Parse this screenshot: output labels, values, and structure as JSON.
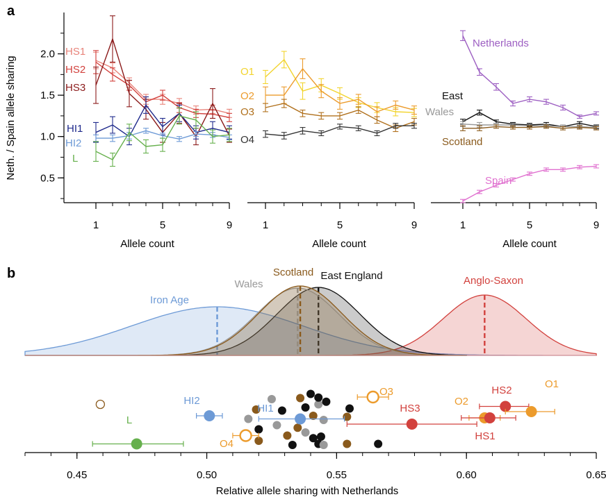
{
  "panel_labels": {
    "a": "a",
    "b": "b"
  },
  "chart_data": [
    {
      "id": "a1",
      "type": "line",
      "xlabel": "Allele count",
      "ylabel": "Neth. / Spain allele sharing",
      "xlim": [
        1,
        9
      ],
      "ylim": [
        0.2,
        2.5
      ],
      "xticks": [
        1,
        5,
        9
      ],
      "yticks": [
        0.5,
        1.0,
        1.5,
        2.0
      ],
      "x": [
        1,
        2,
        3,
        4,
        5,
        6,
        7,
        8,
        9
      ],
      "series": [
        {
          "name": "HS1",
          "color": "#e8837a",
          "values": [
            1.92,
            1.83,
            1.65,
            1.45,
            1.45,
            1.4,
            1.32,
            1.33,
            1.28
          ],
          "err": [
            0.1,
            0.06,
            0.06,
            0.06,
            0.06,
            0.06,
            0.05,
            0.05,
            0.05
          ]
        },
        {
          "name": "HS2",
          "color": "#d2413d",
          "values": [
            1.9,
            1.75,
            1.62,
            1.42,
            1.5,
            1.35,
            1.28,
            1.27,
            1.23
          ],
          "err": [
            0.14,
            0.08,
            0.06,
            0.06,
            0.06,
            0.06,
            0.05,
            0.05,
            0.05
          ]
        },
        {
          "name": "HS3",
          "color": "#8b1a1a",
          "values": [
            1.62,
            2.18,
            1.52,
            1.33,
            1.05,
            1.28,
            1.0,
            1.4,
            1.01
          ],
          "err": [
            0.22,
            0.28,
            0.16,
            0.12,
            0.12,
            0.12,
            0.1,
            0.18,
            0.08
          ]
        },
        {
          "name": "HI1",
          "color": "#1f2a8c",
          "values": [
            1.05,
            1.14,
            1.0,
            1.38,
            1.12,
            1.28,
            1.05,
            1.1,
            1.05
          ],
          "err": [
            0.12,
            0.1,
            0.1,
            0.1,
            0.1,
            0.1,
            0.08,
            0.08,
            0.08
          ]
        },
        {
          "name": "HI2",
          "color": "#6d9ad6",
          "values": [
            0.98,
            0.98,
            1.01,
            1.07,
            1.01,
            0.97,
            1.03,
            1.02,
            0.99
          ],
          "err": [
            0.04,
            0.04,
            0.04,
            0.03,
            0.03,
            0.03,
            0.03,
            0.03,
            0.03
          ]
        },
        {
          "name": "L",
          "color": "#66b04d",
          "values": [
            0.82,
            0.72,
            1.05,
            0.88,
            0.9,
            1.25,
            1.2,
            1.0,
            1.02
          ],
          "err": [
            0.12,
            0.08,
            0.1,
            0.08,
            0.08,
            0.1,
            0.1,
            0.08,
            0.08
          ]
        }
      ]
    },
    {
      "id": "a2",
      "type": "line",
      "xlabel": "Allele count",
      "xlim": [
        1,
        9
      ],
      "ylim": [
        0.2,
        2.5
      ],
      "xticks": [
        1,
        5,
        9
      ],
      "x": [
        1,
        2,
        3,
        4,
        5,
        6,
        7,
        8,
        9
      ],
      "series": [
        {
          "name": "O1",
          "color": "#f2d42e",
          "values": [
            1.72,
            1.93,
            1.55,
            1.62,
            1.52,
            1.41,
            1.35,
            1.3,
            1.29
          ],
          "err": [
            0.08,
            0.1,
            0.1,
            0.08,
            0.07,
            0.06,
            0.06,
            0.05,
            0.05
          ]
        },
        {
          "name": "O2",
          "color": "#ec9b2c",
          "values": [
            1.5,
            1.5,
            1.82,
            1.55,
            1.4,
            1.45,
            1.3,
            1.38,
            1.32
          ],
          "err": [
            0.1,
            0.1,
            0.12,
            0.08,
            0.07,
            0.06,
            0.06,
            0.05,
            0.05
          ]
        },
        {
          "name": "O3",
          "color": "#b0701c",
          "values": [
            1.35,
            1.4,
            1.28,
            1.25,
            1.25,
            1.32,
            1.2,
            1.1,
            1.18
          ],
          "err": [
            0.05,
            0.05,
            0.04,
            0.04,
            0.04,
            0.04,
            0.04,
            0.04,
            0.04
          ]
        },
        {
          "name": "O4",
          "color": "#333333",
          "values": [
            1.03,
            1.01,
            1.07,
            1.04,
            1.12,
            1.1,
            1.04,
            1.13,
            1.13
          ],
          "err": [
            0.04,
            0.04,
            0.04,
            0.03,
            0.03,
            0.03,
            0.03,
            0.03,
            0.03
          ]
        }
      ]
    },
    {
      "id": "a3",
      "type": "line",
      "xlabel": "Allele count",
      "xlim": [
        1,
        9
      ],
      "ylim": [
        0.2,
        2.5
      ],
      "xticks": [
        1,
        5,
        9
      ],
      "x": [
        1,
        2,
        3,
        4,
        5,
        6,
        7,
        8,
        9
      ],
      "series": [
        {
          "name": "Netherlands",
          "color": "#9d5fc2",
          "values": [
            2.22,
            1.78,
            1.6,
            1.4,
            1.45,
            1.42,
            1.35,
            1.24,
            1.28
          ],
          "err": [
            0.06,
            0.04,
            0.04,
            0.03,
            0.03,
            0.03,
            0.03,
            0.02,
            0.02
          ]
        },
        {
          "name": "East",
          "color": "#111111",
          "values": [
            1.18,
            1.29,
            1.18,
            1.15,
            1.14,
            1.15,
            1.12,
            1.16,
            1.12
          ],
          "err": [
            0.03,
            0.03,
            0.02,
            0.02,
            0.02,
            0.02,
            0.02,
            0.02,
            0.02
          ]
        },
        {
          "name": "Wales",
          "color": "#999999",
          "values": [
            1.15,
            1.14,
            1.14,
            1.14,
            1.13,
            1.13,
            1.12,
            1.12,
            1.11
          ],
          "err": [
            0.03,
            0.03,
            0.02,
            0.02,
            0.02,
            0.02,
            0.02,
            0.02,
            0.02
          ]
        },
        {
          "name": "Scotland",
          "color": "#8a5a1c",
          "values": [
            1.1,
            1.1,
            1.12,
            1.11,
            1.11,
            1.12,
            1.1,
            1.11,
            1.1
          ],
          "err": [
            0.03,
            0.03,
            0.02,
            0.02,
            0.02,
            0.02,
            0.02,
            0.02,
            0.02
          ]
        },
        {
          "name": "Spain",
          "color": "#e070cf",
          "values": [
            0.22,
            0.33,
            0.41,
            0.48,
            0.55,
            0.6,
            0.6,
            0.63,
            0.64
          ],
          "err": [
            0.02,
            0.02,
            0.02,
            0.02,
            0.02,
            0.02,
            0.02,
            0.02,
            0.02
          ]
        }
      ]
    },
    {
      "id": "b",
      "type": "scatter",
      "xlabel": "Relative allele sharing with Netherlands",
      "xlim": [
        0.43,
        0.65
      ],
      "xticks": [
        0.45,
        0.5,
        0.55,
        0.6,
        0.65
      ],
      "distributions": [
        {
          "name": "Iron Age",
          "color": "#6d9ad6",
          "mean": 0.504,
          "sd": 0.033,
          "height": 0.7
        },
        {
          "name": "Scotland",
          "color": "#8a5a1c",
          "mean": 0.536,
          "sd": 0.016,
          "height": 1.0
        },
        {
          "name": "Wales",
          "color": "#999999",
          "mean": 0.535,
          "sd": 0.016,
          "height": 0.97
        },
        {
          "name": "East England",
          "color": "#111111",
          "mean": 0.543,
          "sd": 0.016,
          "height": 0.98
        },
        {
          "name": "Anglo-Saxon",
          "color": "#d2413d",
          "mean": 0.607,
          "sd": 0.016,
          "height": 0.87
        }
      ],
      "labeled_points": [
        {
          "name": "L",
          "color": "#66b04d",
          "x": 0.473,
          "lo": 0.456,
          "hi": 0.491,
          "y": 0.14,
          "filled": true
        },
        {
          "name": "HI2",
          "color": "#6d9ad6",
          "x": 0.501,
          "lo": 0.496,
          "hi": 0.506,
          "y": 0.68,
          "filled": true
        },
        {
          "name": "HI1",
          "color": "#6d9ad6",
          "x": 0.536,
          "lo": 0.52,
          "hi": 0.553,
          "y": 0.62,
          "filled": true
        },
        {
          "name": "O4",
          "color": "#ec9b2c",
          "x": 0.515,
          "lo": 0.51,
          "hi": 0.52,
          "y": 0.3,
          "filled": false
        },
        {
          "name": "O3",
          "color": "#ec9b2c",
          "x": 0.564,
          "lo": 0.558,
          "hi": 0.57,
          "y": 1.04,
          "filled": false
        },
        {
          "name": "HS3",
          "color": "#d2413d",
          "x": 0.579,
          "lo": 0.554,
          "hi": 0.604,
          "y": 0.52,
          "filled": true
        },
        {
          "name": "O2",
          "color": "#ec9b2c",
          "x": 0.607,
          "lo": 0.601,
          "hi": 0.613,
          "y": 0.64,
          "filled": true
        },
        {
          "name": "HS1",
          "color": "#d2413d",
          "x": 0.609,
          "lo": 0.598,
          "hi": 0.619,
          "y": 0.64,
          "filled": true
        },
        {
          "name": "HS2",
          "color": "#d2413d",
          "x": 0.615,
          "lo": 0.605,
          "hi": 0.624,
          "y": 0.86,
          "filled": true
        },
        {
          "name": "O1",
          "color": "#ec9b2c",
          "x": 0.625,
          "lo": 0.615,
          "hi": 0.634,
          "y": 0.76,
          "filled": true
        }
      ],
      "unlabeled_points": [
        {
          "color": "#8a5a1c",
          "x": 0.459,
          "y": 0.9,
          "filled": false
        },
        {
          "color": "#999999",
          "x": 0.516,
          "y": 0.62,
          "filled": true
        },
        {
          "color": "#8a5a1c",
          "x": 0.519,
          "y": 0.8,
          "filled": true
        },
        {
          "color": "#111111",
          "x": 0.52,
          "y": 0.42,
          "filled": true
        },
        {
          "color": "#8a5a1c",
          "x": 0.52,
          "y": 0.2,
          "filled": true
        },
        {
          "color": "#999999",
          "x": 0.525,
          "y": 1.0,
          "filled": true
        },
        {
          "color": "#999999",
          "x": 0.527,
          "y": 0.5,
          "filled": true
        },
        {
          "color": "#111111",
          "x": 0.529,
          "y": 0.78,
          "filled": true
        },
        {
          "color": "#8a5a1c",
          "x": 0.531,
          "y": 0.3,
          "filled": true
        },
        {
          "color": "#111111",
          "x": 0.533,
          "y": 0.12,
          "filled": true
        },
        {
          "color": "#8a5a1c",
          "x": 0.535,
          "y": 0.45,
          "filled": true
        },
        {
          "color": "#8a5a1c",
          "x": 0.536,
          "y": 1.02,
          "filled": true
        },
        {
          "color": "#999999",
          "x": 0.538,
          "y": 0.36,
          "filled": true
        },
        {
          "color": "#111111",
          "x": 0.538,
          "y": 0.84,
          "filled": true
        },
        {
          "color": "#111111",
          "x": 0.54,
          "y": 1.1,
          "filled": true
        },
        {
          "color": "#8a5a1c",
          "x": 0.541,
          "y": 0.68,
          "filled": true
        },
        {
          "color": "#111111",
          "x": 0.541,
          "y": 0.25,
          "filled": true
        },
        {
          "color": "#999999",
          "x": 0.543,
          "y": 0.9,
          "filled": true
        },
        {
          "color": "#111111",
          "x": 0.543,
          "y": 0.14,
          "filled": true
        },
        {
          "color": "#111111",
          "x": 0.543,
          "y": 1.03,
          "filled": true
        },
        {
          "color": "#999999",
          "x": 0.545,
          "y": 0.6,
          "filled": true
        },
        {
          "color": "#999999",
          "x": 0.545,
          "y": 0.12,
          "filled": true
        },
        {
          "color": "#111111",
          "x": 0.544,
          "y": 0.28,
          "filled": true
        },
        {
          "color": "#111111",
          "x": 0.546,
          "y": 0.95,
          "filled": true
        },
        {
          "color": "#8a5a1c",
          "x": 0.554,
          "y": 0.14,
          "filled": true
        },
        {
          "color": "#8a5a1c",
          "x": 0.554,
          "y": 0.66,
          "filled": true
        },
        {
          "color": "#111111",
          "x": 0.555,
          "y": 0.82,
          "filled": true
        },
        {
          "color": "#111111",
          "x": 0.566,
          "y": 0.14,
          "filled": true
        }
      ]
    }
  ]
}
